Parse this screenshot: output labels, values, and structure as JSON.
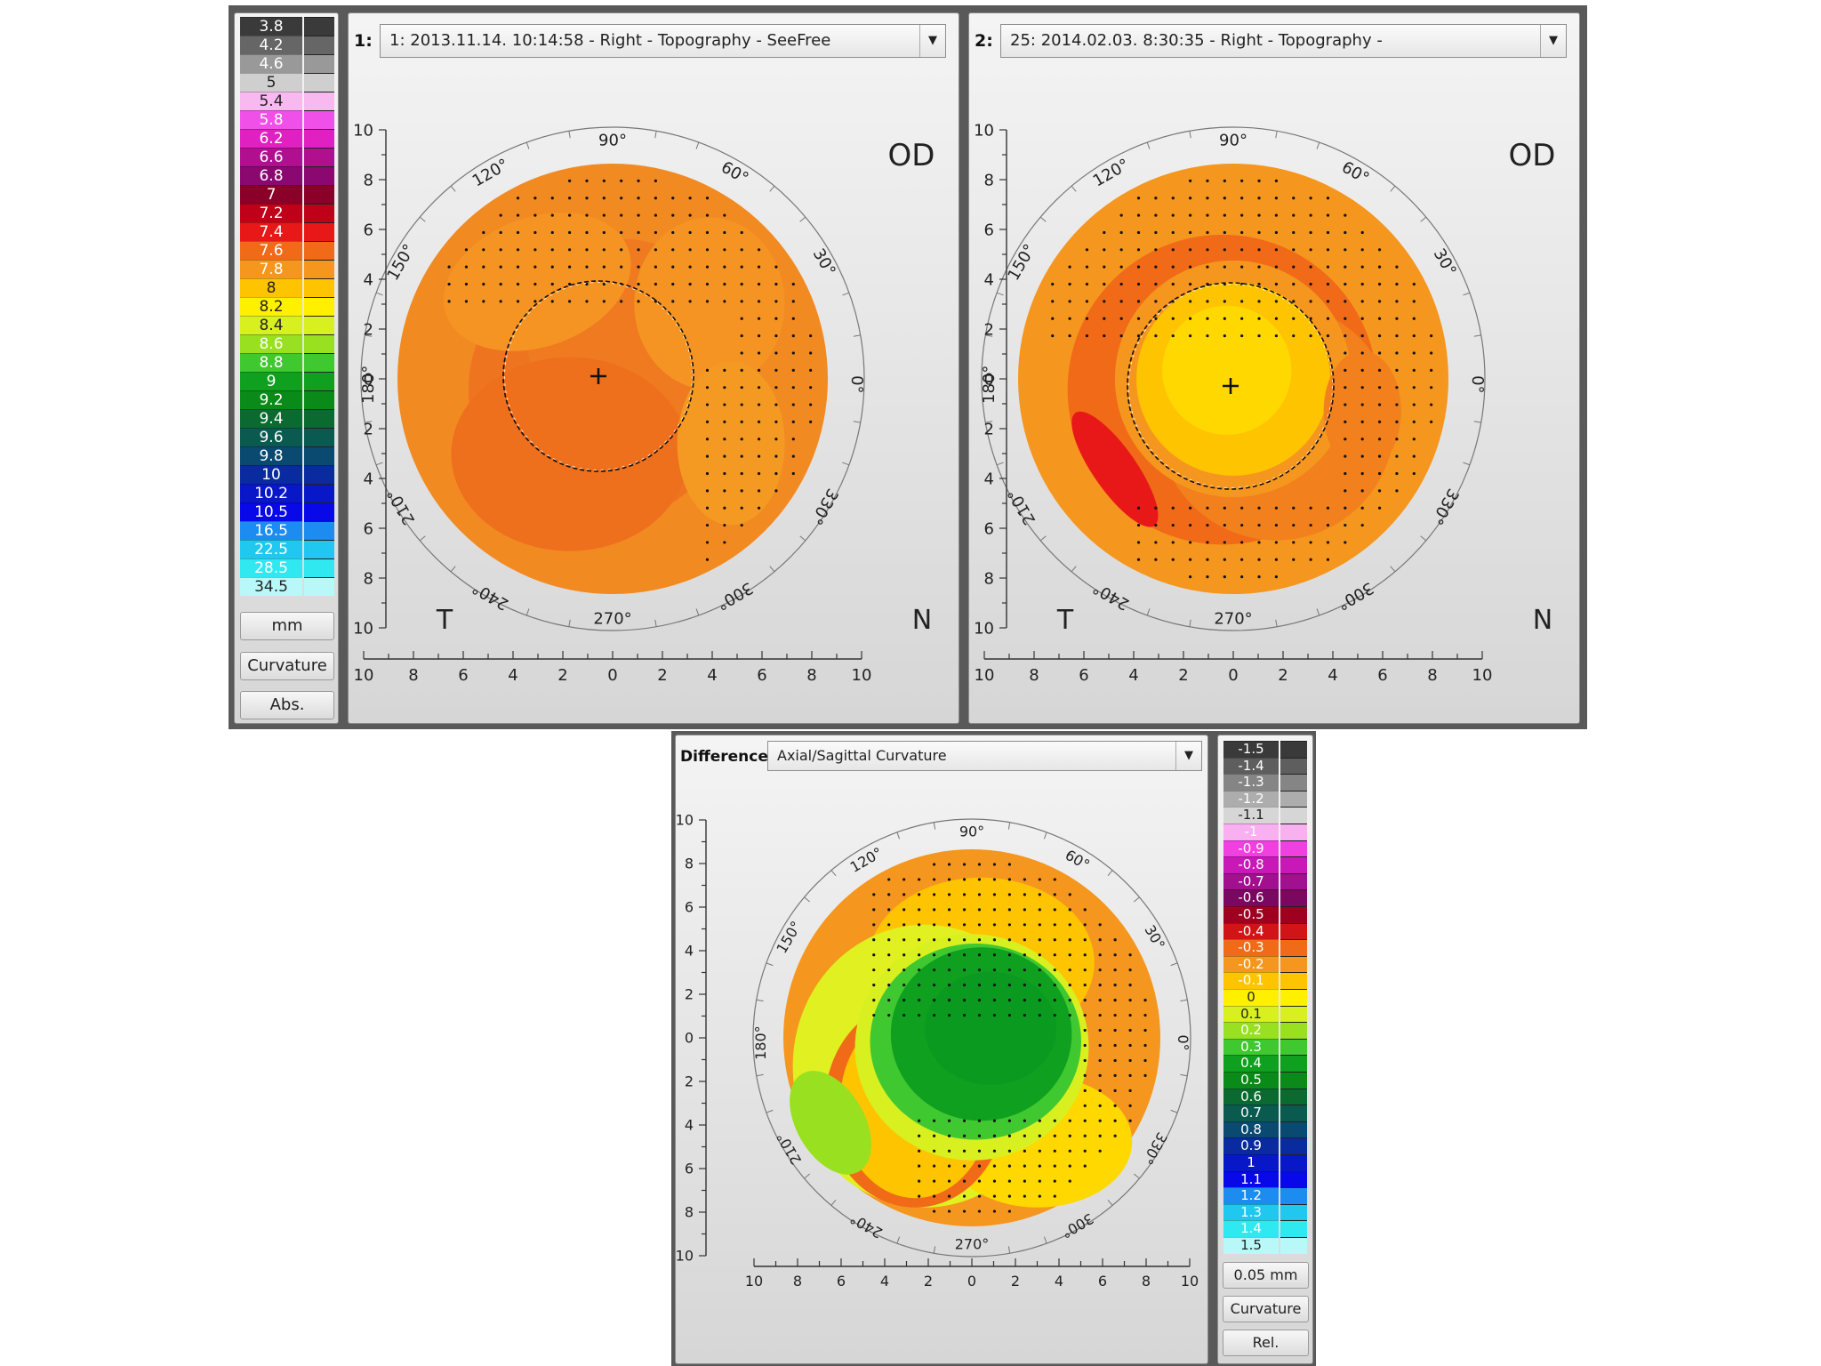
{
  "top": {
    "legend": {
      "values": [
        "3.8",
        "4.2",
        "4.6",
        "5",
        "5.4",
        "5.8",
        "6.2",
        "6.6",
        "6.8",
        "7",
        "7.2",
        "7.4",
        "7.6",
        "7.8",
        "8",
        "8.2",
        "8.4",
        "8.6",
        "8.8",
        "9",
        "9.2",
        "9.4",
        "9.6",
        "9.8",
        "10",
        "10.2",
        "10.5",
        "16.5",
        "22.5",
        "28.5",
        "34.5"
      ],
      "colors": [
        "#3a3a3a",
        "#666666",
        "#999999",
        "#cfcfcf",
        "#f8b8f0",
        "#f050e8",
        "#e020c0",
        "#b0108f",
        "#8a0870",
        "#8a0028",
        "#c00018",
        "#e81818",
        "#f06a18",
        "#f5961e",
        "#ffc400",
        "#fff000",
        "#d8f020",
        "#98e020",
        "#40c830",
        "#10a020",
        "#0a8a18",
        "#0a6a30",
        "#0a5a50",
        "#0a4a70",
        "#0a2aa0",
        "#0818c8",
        "#0808e8",
        "#1c8cf0",
        "#20c8f0",
        "#30e8f0",
        "#b8f8f8"
      ],
      "light_text": [
        "5",
        "5.4",
        "8",
        "8.2",
        "8.4",
        "34.5"
      ],
      "unit_label": "mm",
      "mode_label": "Curvature",
      "scale_label": "Abs."
    },
    "panels": [
      {
        "index_label": "1:",
        "exam": "1: 2013.11.14.  10:14:58 - Right - Topography - SeeFree",
        "eye": "OD",
        "temporal": "T",
        "nasal": "N"
      },
      {
        "index_label": "2:",
        "exam": "25: 2014.02.03.  8:30:35 - Right - Topography -",
        "eye": "OD",
        "temporal": "T",
        "nasal": "N"
      }
    ]
  },
  "difference": {
    "label": "Difference",
    "map_type": "Axial/Sagittal Curvature",
    "legend": {
      "values": [
        "-1.5",
        "-1.4",
        "-1.3",
        "-1.2",
        "-1.1",
        "-1",
        "-0.9",
        "-0.8",
        "-0.7",
        "-0.6",
        "-0.5",
        "-0.4",
        "-0.3",
        "-0.2",
        "-0.1",
        "0",
        "0.1",
        "0.2",
        "0.3",
        "0.4",
        "0.5",
        "0.6",
        "0.7",
        "0.8",
        "0.9",
        "1",
        "1.1",
        "1.2",
        "1.3",
        "1.4",
        "1.5"
      ],
      "colors": [
        "#3a3a3a",
        "#5e5e5e",
        "#858585",
        "#adadad",
        "#d6d6d6",
        "#f8b0f0",
        "#f040e0",
        "#c818b8",
        "#a0108f",
        "#7a0860",
        "#a00020",
        "#d01418",
        "#f06a18",
        "#f5961e",
        "#ffc400",
        "#fff000",
        "#d8f020",
        "#98e020",
        "#40c830",
        "#10a020",
        "#0a8a18",
        "#0a6a30",
        "#0a5a50",
        "#0a4a70",
        "#0a2aa0",
        "#0818c8",
        "#0808e8",
        "#1c8cf0",
        "#20c8f0",
        "#30e8f0",
        "#b8f8f8"
      ],
      "light_text": [
        "-1.1",
        "0",
        "0.1",
        "1.5"
      ],
      "unit_label": "0.05 mm",
      "mode_label": "Curvature",
      "scale_label": "Rel."
    }
  },
  "axes": {
    "degrees": [
      "90°",
      "120°",
      "150°",
      "180°",
      "210°",
      "240°",
      "270°",
      "300°",
      "330°",
      "0°",
      "30°",
      "60°"
    ],
    "y_ticks": [
      "10",
      "8",
      "6",
      "4",
      "2",
      "0",
      "2",
      "4",
      "6",
      "8",
      "10"
    ],
    "x_ticks": [
      "10",
      "8",
      "6",
      "4",
      "2",
      "0",
      "2",
      "4",
      "6",
      "8",
      "10"
    ]
  }
}
